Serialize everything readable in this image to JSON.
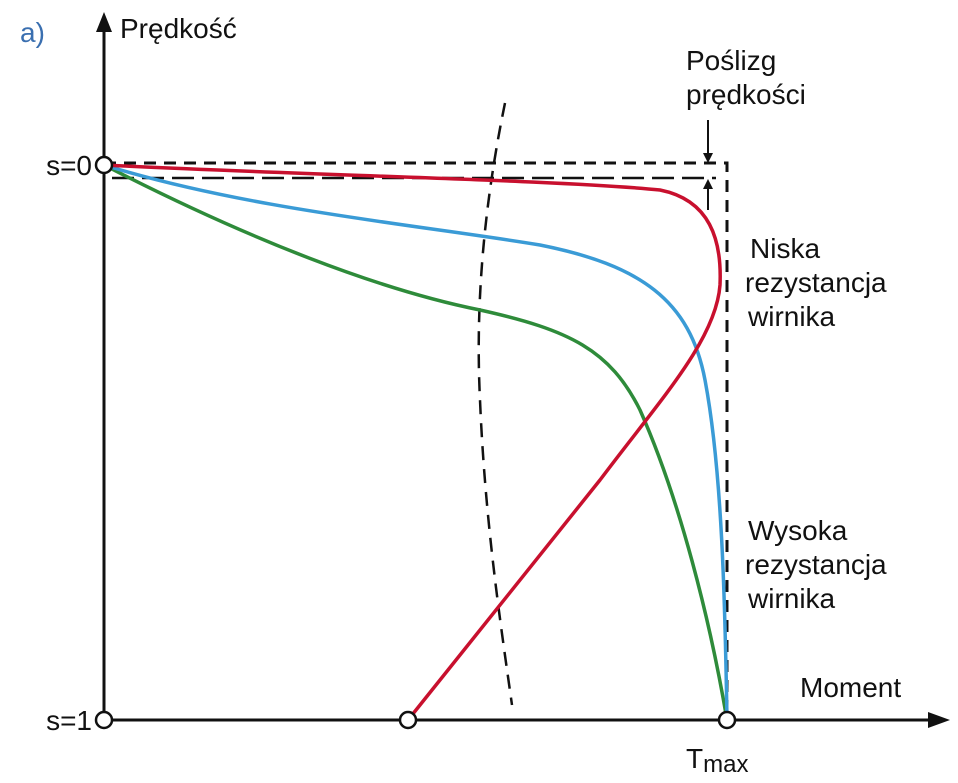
{
  "panel_label": "a)",
  "axes": {
    "y_label": "Prędkość",
    "x_label": "Moment"
  },
  "markers": {
    "s0": "s=0",
    "s1": "s=1",
    "tmax": {
      "main": "T",
      "sub": "max"
    }
  },
  "annotations": {
    "slip": [
      "Poślizg",
      "prędkości"
    ],
    "low_resistance": [
      "Niska",
      "rezystancja",
      "wirnika"
    ],
    "high_resistance": [
      "Wysoka",
      "rezystancja",
      "wirnika"
    ]
  }
}
